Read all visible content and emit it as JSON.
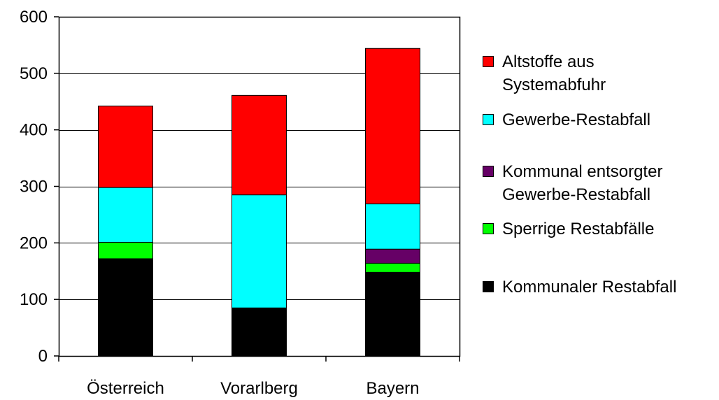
{
  "chart_data": {
    "type": "bar",
    "stacked": true,
    "categories": [
      "Österreich",
      "Vorarlberg",
      "Bayern"
    ],
    "series": [
      {
        "name": "Kommunaler Restabfall",
        "color": "#000000",
        "values": [
          172,
          85,
          148
        ]
      },
      {
        "name": "Sperrige Restabfälle",
        "color": "#00ff00",
        "values": [
          29,
          0,
          16
        ]
      },
      {
        "name": "Kommunal entsorgter Gewerbe-Restabfall",
        "color": "#660066",
        "values": [
          0,
          0,
          25
        ]
      },
      {
        "name": "Gewerbe-Restabfall",
        "color": "#00ffff",
        "values": [
          97,
          200,
          80
        ]
      },
      {
        "name": "Altstoffe aus Systemabfuhr",
        "color": "#ff0000",
        "values": [
          144,
          176,
          275
        ]
      }
    ],
    "y_ticks": [
      0,
      100,
      200,
      300,
      400,
      500,
      600
    ],
    "ylim": [
      0,
      600
    ],
    "grid": true,
    "legend_position": "right",
    "legend": [
      {
        "lines": [
          "Altstoffe aus",
          "Systemabfuhr"
        ],
        "color": "#ff0000"
      },
      {
        "lines": [
          "Gewerbe-Restabfall"
        ],
        "color": "#00ffff"
      },
      {
        "lines": [
          "Kommunal entsorgter",
          "Gewerbe-Restabfall"
        ],
        "color": "#660066"
      },
      {
        "lines": [
          "Sperrige Restabfälle"
        ],
        "color": "#00ff00"
      },
      {
        "lines": [
          "Kommunaler Restabfall"
        ],
        "color": "#000000"
      }
    ]
  }
}
